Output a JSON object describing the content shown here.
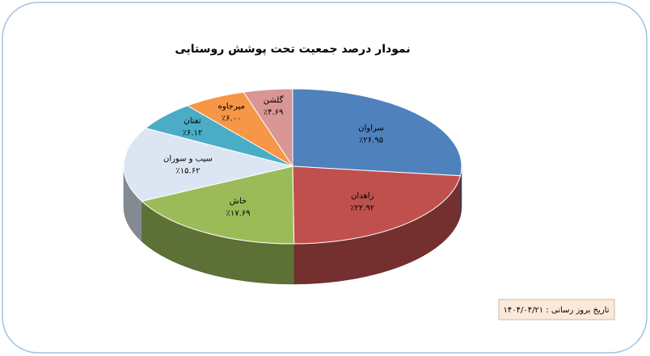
{
  "chart_data": {
    "type": "pie3d",
    "title": "نمودار درصد جمعیت تحت پوشش روستایی",
    "categories": [
      "سراوان",
      "زاهدان",
      "خاش",
      "سیب و سوران",
      "تفتان",
      "میرجاوه",
      "گلشن"
    ],
    "values": [
      26.95,
      22.92,
      17.69,
      15.62,
      6.12,
      6.0,
      4.69
    ],
    "value_labels": [
      "٪۲۶.۹۵",
      "٪۲۲.۹۲",
      "٪۱۷.۶۹",
      "٪۱۵.۶۲",
      "٪۶.۱۲",
      "٪۶.۰۰",
      "٪۴.۶۹"
    ],
    "colors": [
      "#4f81bd",
      "#c0504d",
      "#9bbb59",
      "#dce6f2",
      "#4bacc6",
      "#f79646",
      "#d99694"
    ],
    "footnote": "تاریخ بروز رسانی : ۱۴۰۴/۰۴/۲۱"
  }
}
